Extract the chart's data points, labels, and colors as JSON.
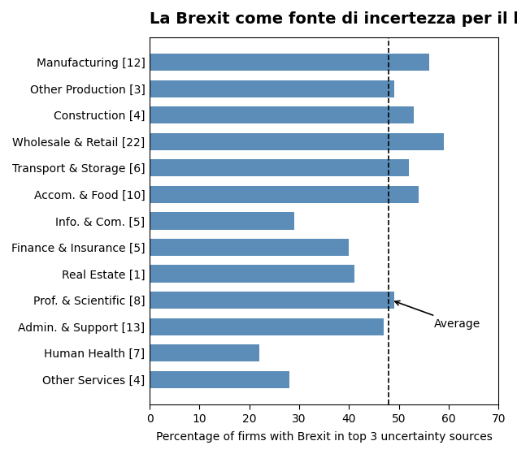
{
  "title": "La Brexit come fonte di incertezza per il business",
  "categories": [
    "Manufacturing [12]",
    "Other Production [3]",
    "Construction [4]",
    "Wholesale & Retail [22]",
    "Transport & Storage [6]",
    "Accom. & Food [10]",
    "Info. & Com. [5]",
    "Finance & Insurance [5]",
    "Real Estate [1]",
    "Prof. & Scientific [8]",
    "Admin. & Support [13]",
    "Human Health [7]",
    "Other Services [4]"
  ],
  "values": [
    56,
    49,
    53,
    59,
    52,
    54,
    29,
    40,
    41,
    49,
    47,
    22,
    28
  ],
  "bar_color": "#5b8db8",
  "average_line": 48,
  "xlim": [
    0,
    70
  ],
  "xticks": [
    0,
    10,
    20,
    30,
    40,
    50,
    60,
    70
  ],
  "xlabel": "Percentage of firms with Brexit in top 3 uncertainty sources",
  "average_label": "Average",
  "background_color": "#ffffff",
  "title_fontsize": 14,
  "label_fontsize": 10,
  "tick_fontsize": 10,
  "xlabel_fontsize": 10,
  "arrow_target_row": 9,
  "arrow_text_row": 10
}
